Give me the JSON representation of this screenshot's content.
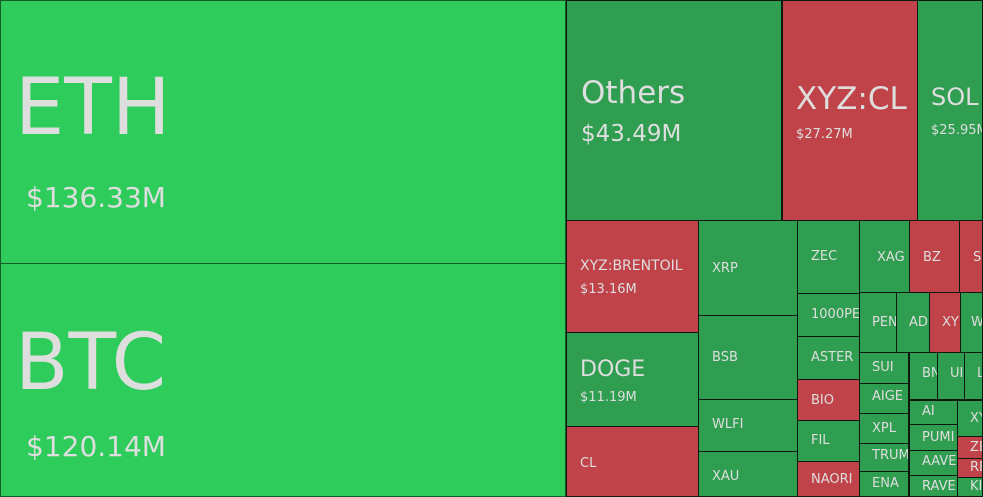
{
  "chart_data": {
    "type": "treemap",
    "title": "",
    "colors": {
      "up_large": "#2ecc5a",
      "up": "#2f9e50",
      "down": "#c04349"
    },
    "items": [
      {
        "name": "ETH",
        "value_label": "$136.33M",
        "value": 136.33,
        "direction": "up"
      },
      {
        "name": "BTC",
        "value_label": "$120.14M",
        "value": 120.14,
        "direction": "up"
      },
      {
        "name": "Others",
        "value_label": "$43.49M",
        "value": 43.49,
        "direction": "up"
      },
      {
        "name": "XYZ:CL",
        "value_label": "$27.27M",
        "value": 27.27,
        "direction": "down"
      },
      {
        "name": "SOL",
        "value_label": "$25.95M",
        "value": 25.95,
        "direction": "up"
      },
      {
        "name": "XYZ:BRENTOIL",
        "value_label": "$13.16M",
        "value": 13.16,
        "direction": "down"
      },
      {
        "name": "DOGE",
        "value_label": "$11.19M",
        "value": 11.19,
        "direction": "up"
      },
      {
        "name": "CL",
        "direction": "down"
      },
      {
        "name": "XRP",
        "direction": "up"
      },
      {
        "name": "BSB",
        "direction": "up"
      },
      {
        "name": "WLFI",
        "direction": "up"
      },
      {
        "name": "XAU",
        "direction": "up"
      },
      {
        "name": "ZEC",
        "direction": "up"
      },
      {
        "name": "1000PE",
        "direction": "up"
      },
      {
        "name": "ASTER",
        "direction": "up"
      },
      {
        "name": "BIO",
        "direction": "down"
      },
      {
        "name": "FIL",
        "direction": "up"
      },
      {
        "name": "NAORI",
        "direction": "down"
      },
      {
        "name": "XAG",
        "direction": "up"
      },
      {
        "name": "BZ",
        "direction": "down"
      },
      {
        "name": "S",
        "direction": "down"
      },
      {
        "name": "PEN",
        "direction": "up"
      },
      {
        "name": "AD",
        "direction": "up"
      },
      {
        "name": "XY",
        "direction": "down"
      },
      {
        "name": "W",
        "direction": "up"
      },
      {
        "name": "SUI",
        "direction": "up"
      },
      {
        "name": "AIGE",
        "direction": "up"
      },
      {
        "name": "XPL",
        "direction": "up"
      },
      {
        "name": "TRUM",
        "direction": "up"
      },
      {
        "name": "ENA",
        "direction": "up"
      },
      {
        "name": "BN",
        "direction": "up"
      },
      {
        "name": "UI",
        "direction": "up"
      },
      {
        "name": "L",
        "direction": "up"
      },
      {
        "name": "AI",
        "direction": "up"
      },
      {
        "name": "PUMI",
        "direction": "up"
      },
      {
        "name": "AAVE",
        "direction": "up"
      },
      {
        "name": "RAVE",
        "direction": "up"
      },
      {
        "name": "XY",
        "direction": "up"
      },
      {
        "name": "ZE",
        "direction": "down"
      },
      {
        "name": "RE",
        "direction": "down"
      },
      {
        "name": "KI",
        "direction": "up"
      }
    ]
  }
}
